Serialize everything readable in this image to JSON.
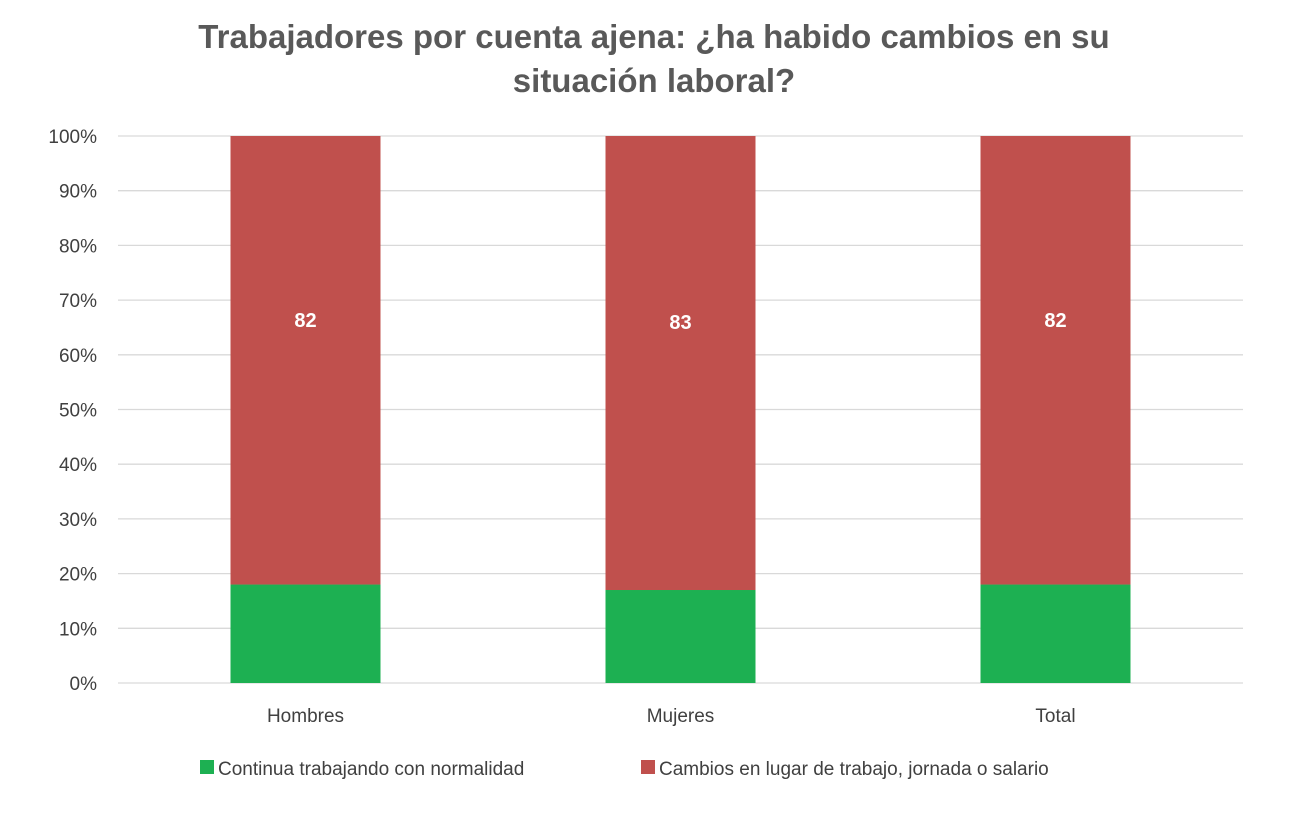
{
  "chart_data": {
    "type": "bar",
    "stacked": true,
    "percent_stacked": true,
    "title_lines": [
      "Trabajadores por cuenta ajena: ¿ha habido cambios en su",
      "situación laboral?"
    ],
    "categories": [
      "Hombres",
      "Mujeres",
      "Total"
    ],
    "series": [
      {
        "name": "Continua trabajando con normalidad",
        "color": "#1DB052",
        "values": [
          18,
          17,
          18
        ],
        "show_labels": false
      },
      {
        "name": "Cambios en lugar de trabajo, jornada o salario",
        "color": "#C0504D",
        "values": [
          82,
          83,
          82
        ],
        "show_labels": true
      }
    ],
    "y_ticks": [
      "0%",
      "10%",
      "20%",
      "30%",
      "40%",
      "50%",
      "60%",
      "70%",
      "80%",
      "90%",
      "100%"
    ],
    "ylim": [
      0,
      100
    ],
    "grid": true,
    "legend_position": "bottom"
  }
}
